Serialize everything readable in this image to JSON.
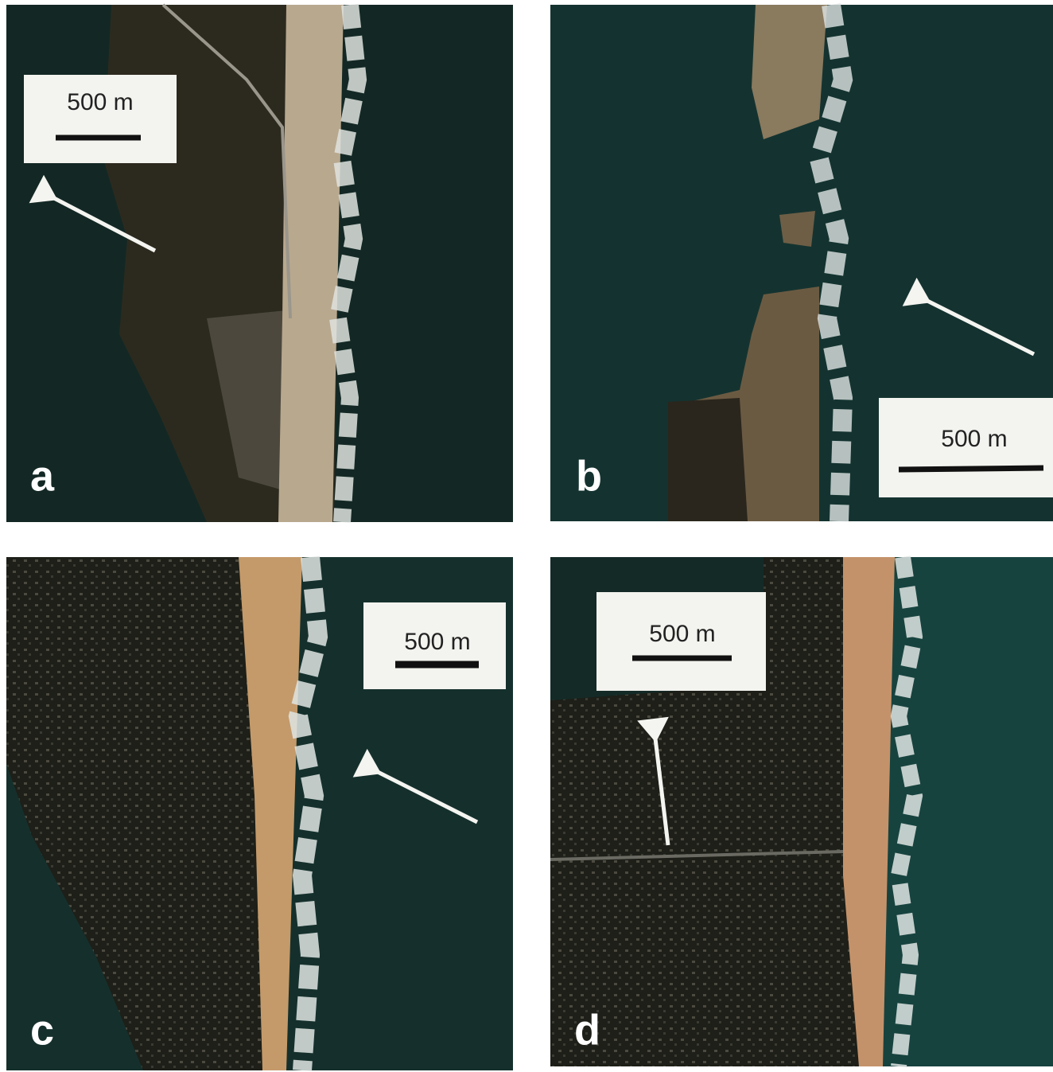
{
  "panels": [
    {
      "label": "a",
      "scale": "500 m"
    },
    {
      "label": "b",
      "scale": "500 m"
    },
    {
      "label": "c",
      "scale": "500 m"
    },
    {
      "label": "d",
      "scale": "500 m"
    }
  ]
}
